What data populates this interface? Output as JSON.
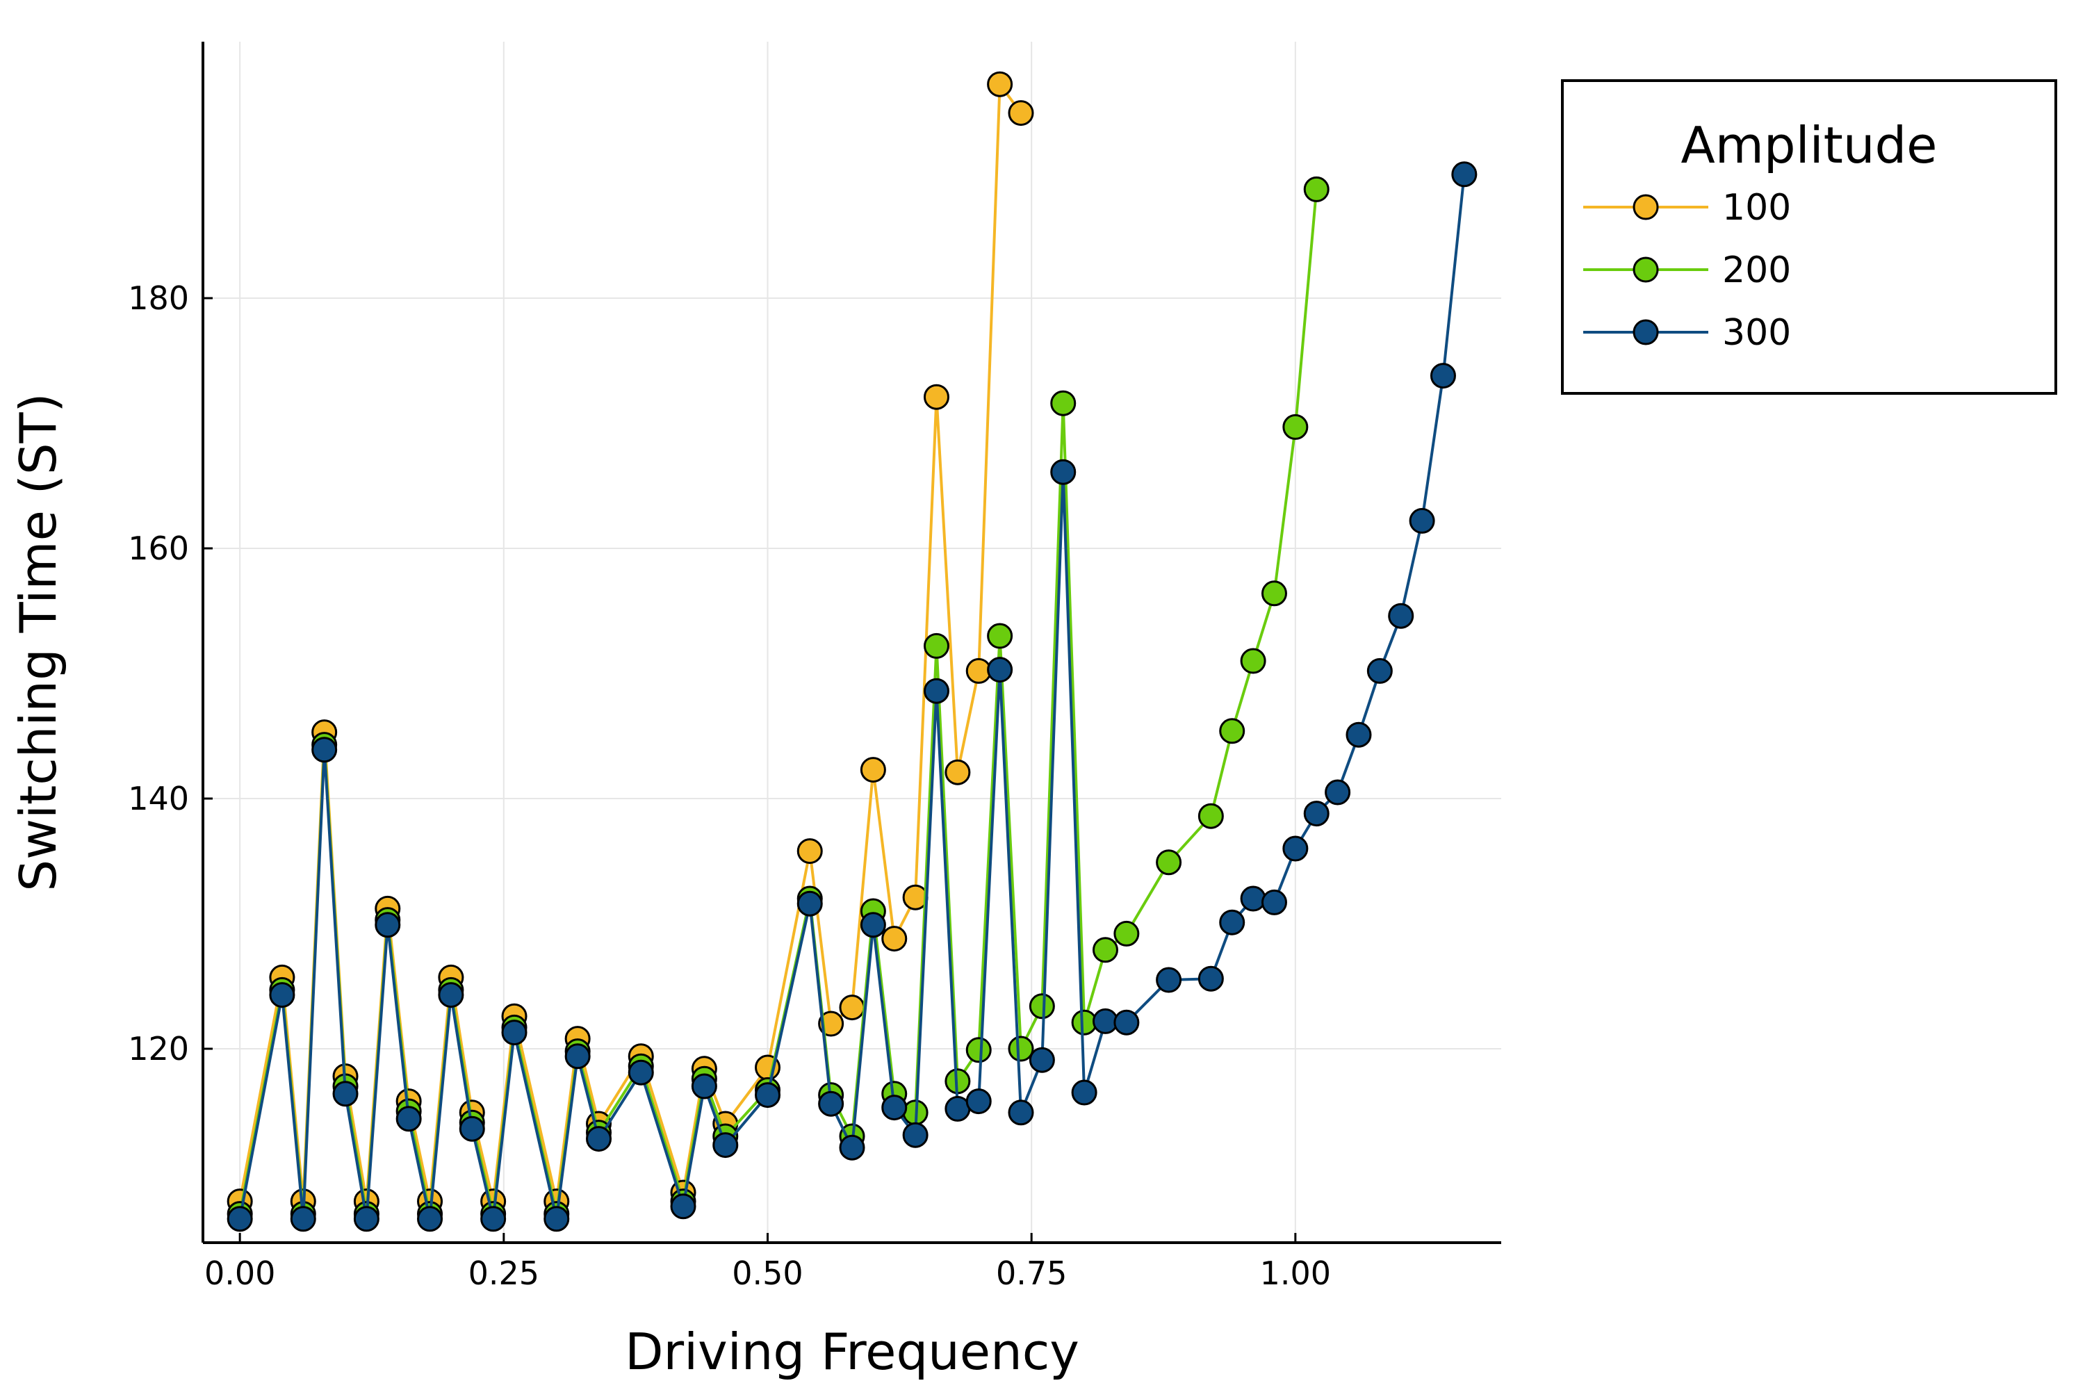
{
  "chart_data": {
    "type": "line",
    "xlabel": "Driving Frequency",
    "ylabel": "Switching Time (ST)",
    "xlim": [
      -0.035,
      1.195
    ],
    "ylim": [
      104.5,
      200.5
    ],
    "xticks": [
      0.0,
      0.25,
      0.5,
      0.75,
      1.0
    ],
    "xtick_labels": [
      "0.00",
      "0.25",
      "0.50",
      "0.75",
      "1.00"
    ],
    "yticks": [
      120,
      140,
      160,
      180
    ],
    "ytick_labels": [
      "120",
      "140",
      "160",
      "180"
    ],
    "grid": true,
    "legend": {
      "title": "Amplitude",
      "position": "outside-right-top"
    },
    "series": [
      {
        "name": "100",
        "color": "#F5B625",
        "x": [
          0.0,
          0.04,
          0.06,
          0.08,
          0.1,
          0.12,
          0.14,
          0.16,
          0.18,
          0.2,
          0.22,
          0.24,
          0.26,
          0.3,
          0.32,
          0.34,
          0.38,
          0.42,
          0.44,
          0.46,
          0.5,
          0.54,
          0.56,
          0.58,
          0.6,
          0.62,
          0.64,
          0.66,
          0.68,
          0.7,
          0.72,
          0.74
        ],
        "y": [
          107.8,
          125.7,
          107.8,
          145.3,
          117.8,
          107.8,
          131.2,
          115.8,
          107.8,
          125.7,
          114.9,
          107.8,
          122.6,
          107.8,
          120.8,
          114.0,
          119.4,
          108.5,
          118.4,
          114.0,
          118.5,
          135.8,
          122.0,
          123.3,
          142.3,
          128.8,
          132.1,
          172.1,
          142.1,
          150.2,
          197.1,
          194.8
        ]
      },
      {
        "name": "200",
        "color": "#6ACC0E",
        "x": [
          0.0,
          0.04,
          0.06,
          0.08,
          0.1,
          0.12,
          0.14,
          0.16,
          0.18,
          0.2,
          0.22,
          0.24,
          0.26,
          0.3,
          0.32,
          0.34,
          0.38,
          0.42,
          0.44,
          0.46,
          0.5,
          0.54,
          0.56,
          0.58,
          0.6,
          0.62,
          0.64,
          0.66,
          0.68,
          0.7,
          0.72,
          0.74,
          0.76,
          0.78,
          0.8,
          0.82,
          0.84,
          0.88,
          0.92,
          0.94,
          0.96,
          0.98,
          1.0,
          1.02
        ],
        "y": [
          106.8,
          124.7,
          106.8,
          144.3,
          117.0,
          106.8,
          130.3,
          115.0,
          106.8,
          124.7,
          114.1,
          106.8,
          121.7,
          106.8,
          119.8,
          113.3,
          118.6,
          107.8,
          117.6,
          113.0,
          116.7,
          132.0,
          116.3,
          113.0,
          131.0,
          116.4,
          114.9,
          152.2,
          117.4,
          119.9,
          153.0,
          120.0,
          123.4,
          171.6,
          122.1,
          127.9,
          129.2,
          134.9,
          138.6,
          145.4,
          151.0,
          156.4,
          169.7,
          188.7
        ]
      },
      {
        "name": "300",
        "color": "#0F4C81",
        "x": [
          0.0,
          0.04,
          0.06,
          0.08,
          0.1,
          0.12,
          0.14,
          0.16,
          0.18,
          0.2,
          0.22,
          0.24,
          0.26,
          0.3,
          0.32,
          0.34,
          0.38,
          0.42,
          0.44,
          0.46,
          0.5,
          0.54,
          0.56,
          0.58,
          0.6,
          0.62,
          0.64,
          0.66,
          0.68,
          0.7,
          0.72,
          0.74,
          0.76,
          0.78,
          0.8,
          0.82,
          0.84,
          0.88,
          0.92,
          0.94,
          0.96,
          0.98,
          1.0,
          1.02,
          1.04,
          1.06,
          1.08,
          1.1,
          1.12,
          1.14,
          1.16
        ],
        "y": [
          106.4,
          124.3,
          106.4,
          143.9,
          116.4,
          106.4,
          129.9,
          114.4,
          106.4,
          124.3,
          113.6,
          106.4,
          121.3,
          106.4,
          119.4,
          112.8,
          118.1,
          107.4,
          117.0,
          112.3,
          116.3,
          131.6,
          115.6,
          112.1,
          129.9,
          115.3,
          113.1,
          148.6,
          115.2,
          115.8,
          150.3,
          114.9,
          119.1,
          166.1,
          116.5,
          122.2,
          122.1,
          125.5,
          125.6,
          130.1,
          132.0,
          131.7,
          136.0,
          138.8,
          140.5,
          145.1,
          150.2,
          154.6,
          162.2,
          173.8,
          189.9
        ]
      }
    ]
  }
}
